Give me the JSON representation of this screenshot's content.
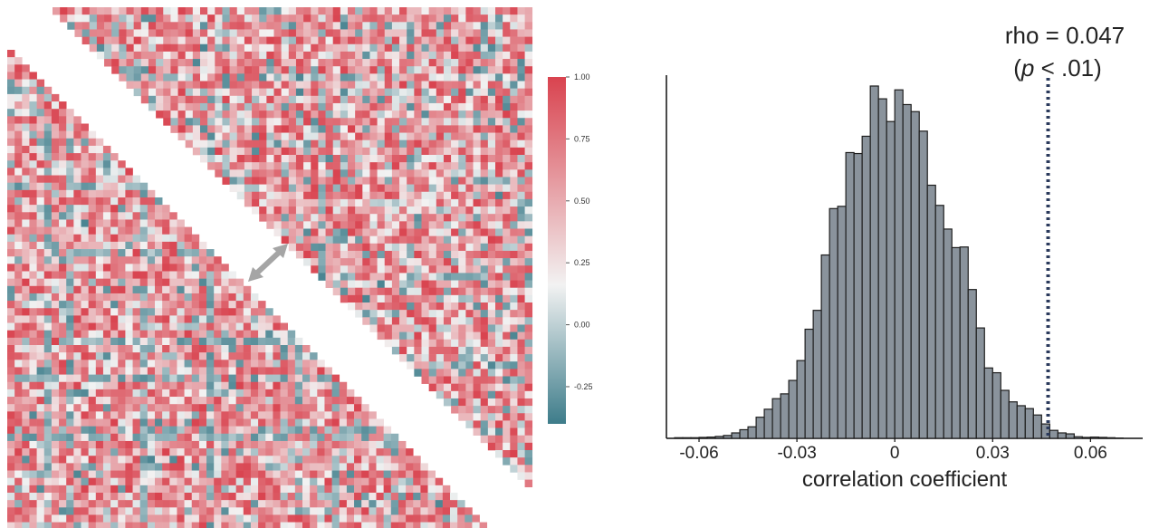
{
  "chart_data": [
    {
      "type": "heatmap",
      "description_layout": "two triangular correlation matrices facing each other along the diagonal",
      "palette": {
        "low": "#3d7c8a",
        "mid": "#f2f2f2",
        "high": "#d9434f"
      },
      "colorbar": {
        "min": -0.4,
        "max": 1.0,
        "ticks": [
          "1.00",
          "0.75",
          "0.50",
          "0.25",
          "0.00",
          "-0.25"
        ],
        "tick_values": [
          1.0,
          0.75,
          0.5,
          0.25,
          0.0,
          -0.25
        ]
      },
      "arrow_color": "#a5a5a5"
    },
    {
      "type": "bar",
      "bar_fill": "#8a939c",
      "bar_stroke": "#1e1e1e",
      "bin_start": -0.0675,
      "bin_width": 0.0025,
      "counts": [
        2,
        2,
        2,
        3,
        4,
        6,
        9,
        17,
        27,
        36,
        66,
        91,
        124,
        139,
        181,
        243,
        341,
        400,
        573,
        718,
        725,
        893,
        890,
        944,
        1101,
        1061,
        990,
        1089,
        1043,
        1021,
        960,
        791,
        728,
        654,
        596,
        598,
        465,
        345,
        220,
        205,
        150,
        114,
        102,
        93,
        73,
        45,
        25,
        17,
        14,
        5,
        3,
        4,
        3,
        2,
        1
      ],
      "xlim": [
        -0.07,
        0.076
      ],
      "ylim": [
        0,
        1200
      ],
      "xticks": [
        -0.06,
        -0.03,
        0,
        0.03,
        0.06
      ],
      "xtick_labels": [
        "-0.06",
        "-0.03",
        "0",
        "0.03",
        "0.06"
      ],
      "xlabel": "correlation coefficient",
      "observed": {
        "value": 0.047,
        "line_style": "dotted",
        "line_color": "#2b3a5c",
        "label_line1": "rho = 0.047",
        "label_p": "p",
        "label_rest": " < .01)",
        "label_open": "("
      }
    }
  ]
}
